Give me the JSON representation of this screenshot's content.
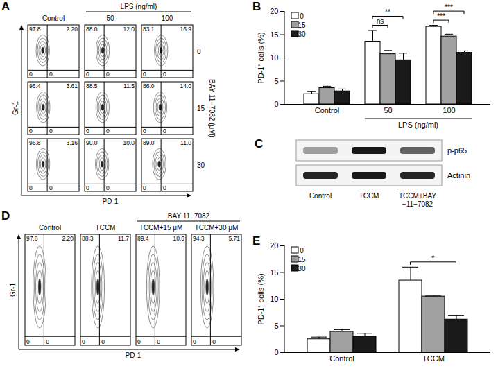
{
  "chart_data": [
    {
      "type": "bar",
      "panel_label": "B",
      "y_label": "PD-1⁺ cells (%)",
      "categories": [
        "Control",
        "50",
        "100"
      ],
      "group": {
        "label": "LPS (ng/ml)",
        "categories": [
          "50",
          "100"
        ]
      },
      "series": [
        {
          "name": "0",
          "color": "#ffffff",
          "values": [
            2.2,
            13.5,
            16.7
          ],
          "errors": [
            0.6,
            2.4,
            0.3
          ]
        },
        {
          "name": "15",
          "color": "#a0a0a0",
          "values": [
            3.5,
            10.8,
            14.6
          ],
          "errors": [
            0.4,
            0.8,
            0.5
          ]
        },
        {
          "name": "30",
          "color": "#1a1a1a",
          "values": [
            2.8,
            9.5,
            11.1
          ],
          "errors": [
            0.5,
            1.5,
            0.4
          ]
        }
      ],
      "significance": [
        {
          "category": "50",
          "from": "0",
          "to": "15",
          "label": "ns"
        },
        {
          "category": "50",
          "from": "0",
          "to": "30",
          "label": "**"
        },
        {
          "category": "100",
          "from": "0",
          "to": "15",
          "label": "***"
        },
        {
          "category": "100",
          "from": "0",
          "to": "30",
          "label": "***"
        }
      ],
      "ylim": [
        0,
        20
      ],
      "yticks": [
        0,
        5,
        10,
        15,
        20
      ],
      "grid": false,
      "legend": "top-left"
    },
    {
      "type": "bar",
      "panel_label": "E",
      "y_label": "PD-1⁺ cells (%)",
      "categories": [
        "Control",
        "TCCM"
      ],
      "series": [
        {
          "name": "0",
          "color": "#ffffff",
          "values": [
            2.5,
            13.5
          ],
          "errors": [
            0.4,
            2.5
          ]
        },
        {
          "name": "15",
          "color": "#a0a0a0",
          "values": [
            3.9,
            10.5
          ],
          "errors": [
            0.4,
            0.1
          ]
        },
        {
          "name": "30",
          "color": "#1a1a1a",
          "values": [
            3.0,
            6.2
          ],
          "errors": [
            0.6,
            0.7
          ]
        }
      ],
      "significance": [
        {
          "category": "TCCM",
          "from": "0",
          "to": "30",
          "label": "*"
        }
      ],
      "ylim": [
        0,
        20
      ],
      "yticks": [
        0,
        5,
        10,
        15,
        20
      ],
      "grid": false,
      "legend": "top-left"
    }
  ],
  "flow_panels": [
    {
      "panel_label": "A",
      "x_label": "PD-1",
      "y_label": "Gr-1",
      "columns": [
        "Control",
        "50",
        "100"
      ],
      "column_group": {
        "label": "LPS (ng/ml)",
        "columns": [
          "50",
          "100"
        ]
      },
      "row_group": "BAY 11−7082 (μM)",
      "rows": [
        "0",
        "15",
        "30"
      ],
      "quadrants": [
        [
          [
            "97.8",
            "2.20",
            "0",
            "0"
          ],
          [
            "88.0",
            "12.0",
            "0",
            "0"
          ],
          [
            "83.1",
            "16.9",
            "0",
            "0"
          ]
        ],
        [
          [
            "96.4",
            "3.61",
            "0",
            "0"
          ],
          [
            "88.5",
            "11.5",
            "0",
            "0"
          ],
          [
            "86.0",
            "14.0",
            "0",
            "0"
          ]
        ],
        [
          [
            "96.8",
            "3.16",
            "0",
            "0"
          ],
          [
            "90.0",
            "10.0",
            "0",
            "0"
          ],
          [
            "89.0",
            "11.0",
            "0",
            "0"
          ]
        ]
      ]
    },
    {
      "panel_label": "D",
      "x_label": "PD-1",
      "y_label": "Gr-1",
      "columns": [
        "Control",
        "TCCM",
        "TCCM+15 μM",
        "TCCM+30 μM"
      ],
      "column_group": {
        "label": "BAY 11−7082",
        "columns": [
          "TCCM+15 μM",
          "TCCM+30 μM"
        ]
      },
      "quadrants": [
        [
          [
            "97.8",
            "2.20",
            "0",
            "0"
          ],
          [
            "88.3",
            "11.7",
            "0",
            "0"
          ],
          [
            "89.4",
            "10.6",
            "0",
            "0"
          ],
          [
            "94.3",
            "5.71",
            "0",
            "0"
          ]
        ]
      ]
    }
  ],
  "blot": {
    "panel_label": "C",
    "bands": [
      {
        "name": "p-p65",
        "intensities": [
          0.35,
          0.9,
          0.6
        ]
      },
      {
        "name": "Actinin",
        "intensities": [
          0.85,
          0.9,
          0.85
        ]
      }
    ],
    "lanes": [
      [
        "Control"
      ],
      [
        "TCCM"
      ],
      [
        "TCCM+BAY",
        "−11−7082"
      ]
    ]
  }
}
